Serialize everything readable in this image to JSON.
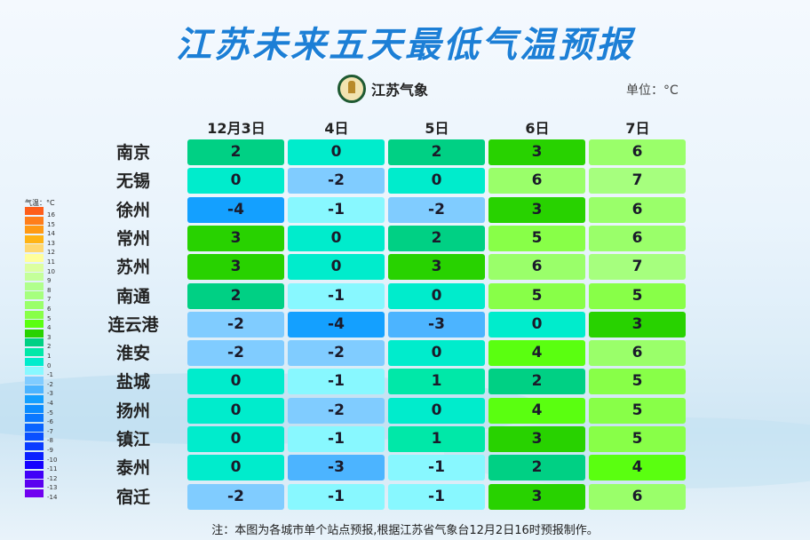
{
  "title": "江苏未来五天最低气温预报",
  "logo_text": "江苏气象",
  "unit": "单位：°C",
  "columns": [
    "12月3日",
    "4日",
    "5日",
    "6日",
    "7日"
  ],
  "rows": [
    {
      "city": "南京",
      "values": [
        2,
        0,
        2,
        3,
        6
      ]
    },
    {
      "city": "无锡",
      "values": [
        0,
        -2,
        0,
        6,
        7
      ]
    },
    {
      "city": "徐州",
      "values": [
        -4,
        -1,
        -2,
        3,
        6
      ]
    },
    {
      "city": "常州",
      "values": [
        3,
        0,
        2,
        5,
        6
      ]
    },
    {
      "city": "苏州",
      "values": [
        3,
        0,
        3,
        6,
        7
      ]
    },
    {
      "city": "南通",
      "values": [
        2,
        -1,
        0,
        5,
        5
      ]
    },
    {
      "city": "连云港",
      "values": [
        -2,
        -4,
        -3,
        0,
        3
      ]
    },
    {
      "city": "淮安",
      "values": [
        -2,
        -2,
        0,
        4,
        6
      ]
    },
    {
      "city": "盐城",
      "values": [
        0,
        -1,
        1,
        2,
        5
      ]
    },
    {
      "city": "扬州",
      "values": [
        0,
        -2,
        0,
        4,
        5
      ]
    },
    {
      "city": "镇江",
      "values": [
        0,
        -1,
        1,
        3,
        5
      ]
    },
    {
      "city": "泰州",
      "values": [
        0,
        -3,
        -1,
        2,
        4
      ]
    },
    {
      "city": "宿迁",
      "values": [
        -2,
        -1,
        -1,
        3,
        6
      ]
    }
  ],
  "legend": {
    "title": "气温：°C",
    "levels": [
      {
        "value": 16,
        "color": "#fe5e1a"
      },
      {
        "value": 15,
        "color": "#ff7e1a"
      },
      {
        "value": 14,
        "color": "#ff9a14"
      },
      {
        "value": 13,
        "color": "#ffb414"
      },
      {
        "value": 12,
        "color": "#ffd870"
      },
      {
        "value": 11,
        "color": "#ffff9c"
      },
      {
        "value": 10,
        "color": "#dcffa0"
      },
      {
        "value": 9,
        "color": "#c4ff9a"
      },
      {
        "value": 8,
        "color": "#b0ff8c"
      },
      {
        "value": 7,
        "color": "#a6ff7e"
      },
      {
        "value": 6,
        "color": "#9aff6a"
      },
      {
        "value": 5,
        "color": "#88ff48"
      },
      {
        "value": 4,
        "color": "#5aff10"
      },
      {
        "value": 3,
        "color": "#28d200"
      },
      {
        "value": 2,
        "color": "#00d084"
      },
      {
        "value": 1,
        "color": "#00e8a8"
      },
      {
        "value": 0,
        "color": "#00eccc"
      },
      {
        "value": -1,
        "color": "#88f8ff"
      },
      {
        "value": -2,
        "color": "#80ccff"
      },
      {
        "value": -3,
        "color": "#4cb4ff"
      },
      {
        "value": -4,
        "color": "#14a0ff"
      },
      {
        "value": -5,
        "color": "#0a8cff"
      },
      {
        "value": -6,
        "color": "#0a78ff"
      },
      {
        "value": -7,
        "color": "#0a64ff"
      },
      {
        "value": -8,
        "color": "#0a50ff"
      },
      {
        "value": -9,
        "color": "#0a3cff"
      },
      {
        "value": -10,
        "color": "#0a20ff"
      },
      {
        "value": -11,
        "color": "#1400ff"
      },
      {
        "value": -12,
        "color": "#4000f8"
      },
      {
        "value": -13,
        "color": "#5a00f0"
      },
      {
        "value": -14,
        "color": "#7000f0"
      }
    ]
  },
  "footer": "注：本图为各城市单个站点预报,根据江苏省气象台12月2日16时预报制作。"
}
